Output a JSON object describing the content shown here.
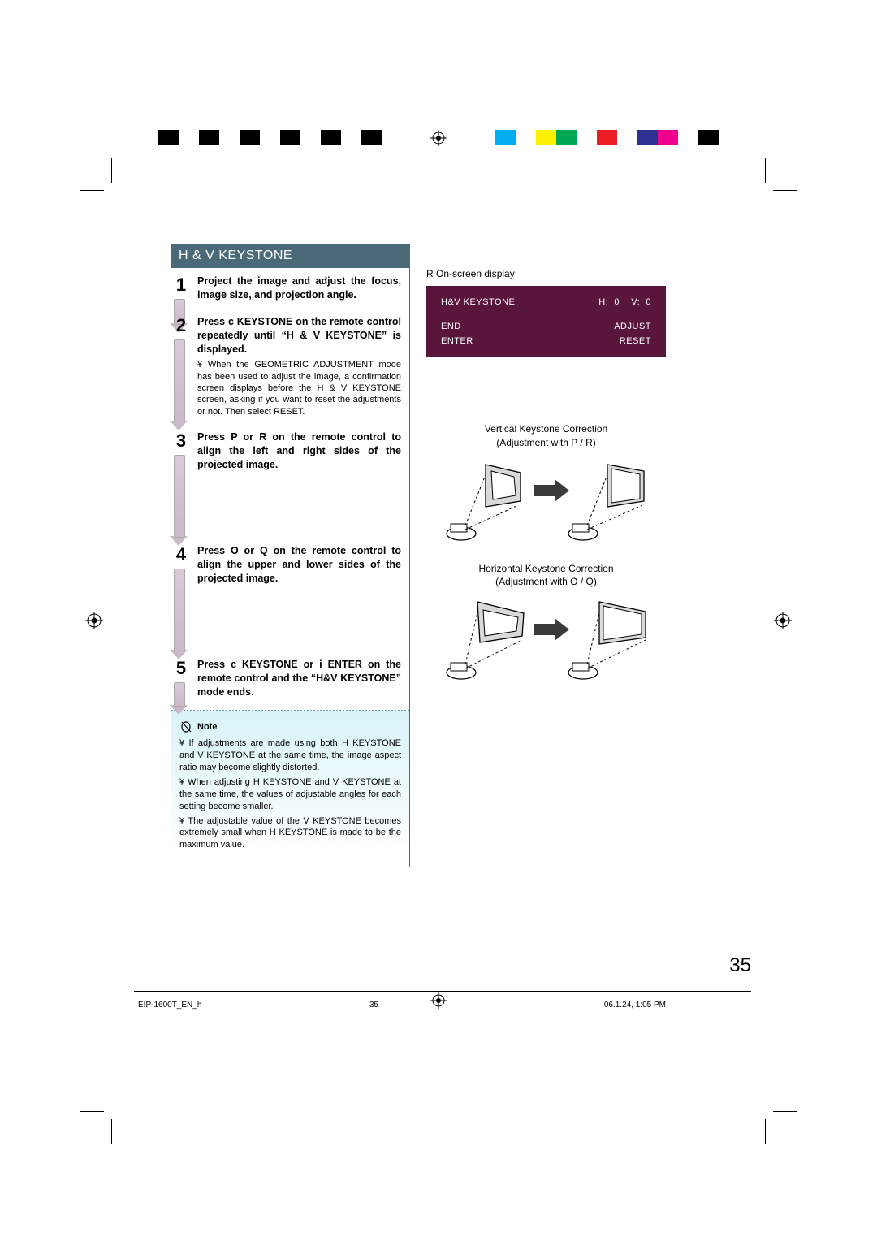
{
  "section_title": "H & V KEYSTONE",
  "steps": [
    {
      "num": "1",
      "text": "Project the image and adjust the focus, image size, and projection angle.",
      "arrow_h": 30
    },
    {
      "num": "2",
      "text": "Press c KEYSTONE on the remote control repeatedly until “H & V KEYSTONE” is displayed.",
      "sub": "¥ When the GEOMETRIC ADJUSTMENT mode has been used to adjust the image, a confirmation screen displays before the H & V KEYSTONE screen, asking if you want to reset the adjustments or not. Then select RESET.",
      "arrow_h": 100
    },
    {
      "num": "3",
      "text": "Press P or R on the remote control to align the left and right sides of the projected image.",
      "arrow_h": 100
    },
    {
      "num": "4",
      "text": "Press O or Q on the remote control to align the upper and lower sides of the projected image.",
      "arrow_h": 100
    },
    {
      "num": "5",
      "text": "Press c KEYSTONE or i ENTER on the remote control and the “H&V KEYSTONE” mode ends.",
      "arrow_h": 28
    }
  ],
  "note": {
    "title": "Note",
    "items": [
      "¥ If adjustments are made using both H KEYSTONE and V KEYSTONE at the same time, the image aspect ratio may become slightly distorted.",
      "¥ When adjusting H KEYSTONE and V KEYSTONE at the same time, the values of adjustable angles for each setting become smaller.",
      "¥ The adjustable value of the V KEYSTONE becomes extremely small when H KEYSTONE is made to be the maximum value."
    ]
  },
  "osd": {
    "label": "R On-screen display",
    "title": "H&V KEYSTONE",
    "h_label": "H:",
    "h_value": "0",
    "v_label": "V:",
    "v_value": "0",
    "end": "END",
    "enter": "ENTER",
    "adjust": "ADJUST",
    "reset": "RESET",
    "bg_color": "#5a153a",
    "text_color": "#ffffff"
  },
  "diagrams": {
    "vertical": {
      "caption_line1": "Vertical Keystone Correction",
      "caption_line2": "(Adjustment with  P / R)"
    },
    "horizontal": {
      "caption_line1": "Horizontal Keystone Correction",
      "caption_line2": "(Adjustment with  O / Q)"
    }
  },
  "page_number": "35",
  "footer": {
    "doc_id": "EIP-1600T_EN_h",
    "page": "35",
    "timestamp": "06.1.24, 1:05 PM"
  },
  "print_colors_left": [
    "#000000",
    "#ffffff",
    "#000000",
    "#ffffff",
    "#000000",
    "#ffffff",
    "#000000",
    "#ffffff",
    "#000000",
    "#ffffff",
    "#000000"
  ],
  "print_colors_right": [
    "#ffffff",
    "#00aeef",
    "#ffffff",
    "#fff200",
    "#00a651",
    "#ffffff",
    "#ed1c24",
    "#ffffff",
    "#2e3192",
    "#ec008c",
    "#ffffff",
    "#000000"
  ]
}
